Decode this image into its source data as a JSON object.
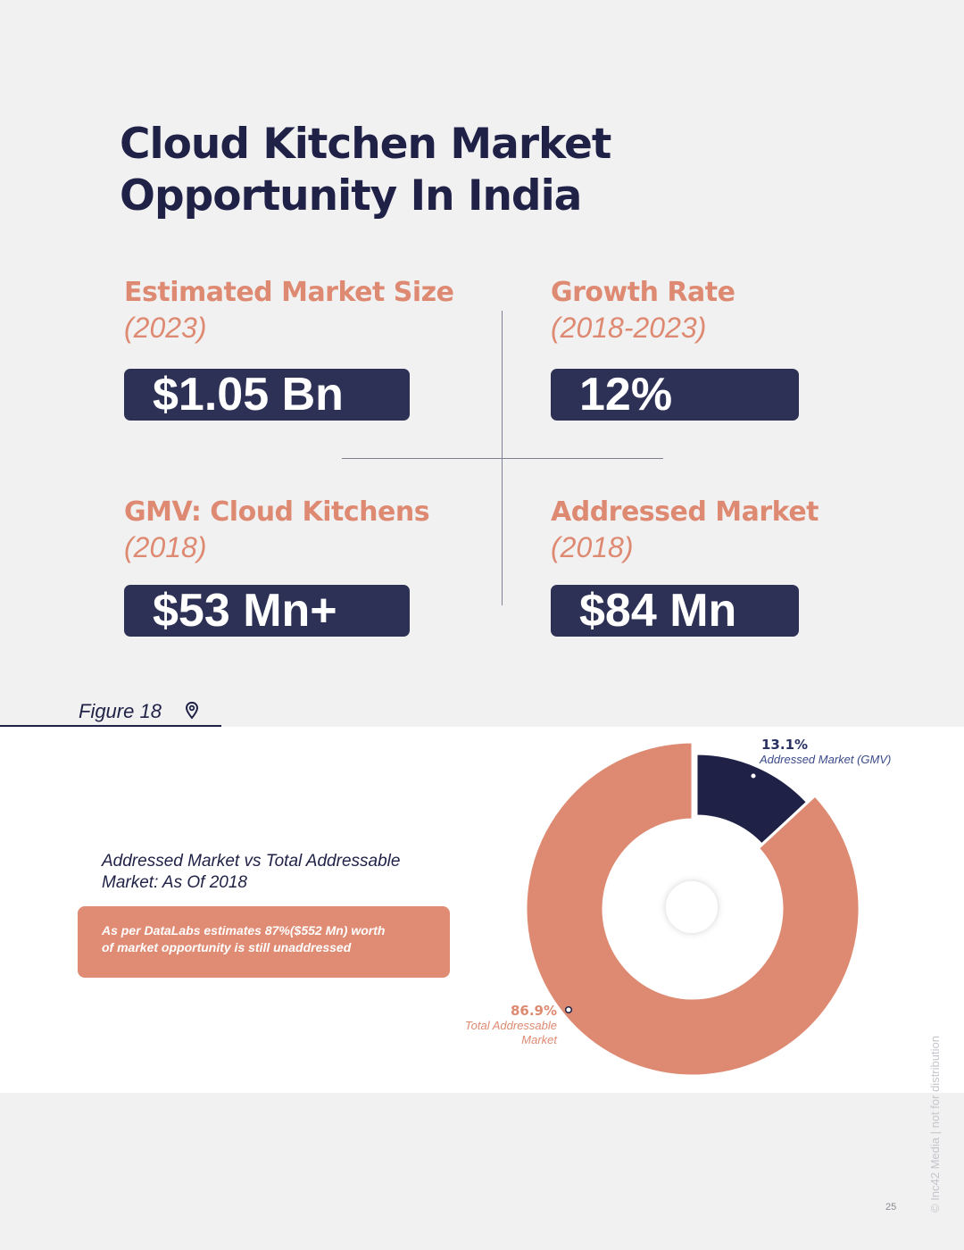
{
  "page": {
    "title_line1": "Cloud Kitchen Market",
    "title_line2": "Opportunity In India",
    "page_number": "25",
    "copyright": "© Inc42 Media | not for distribution"
  },
  "stats": [
    {
      "title": "Estimated Market Size",
      "subtitle": "(2023)",
      "value": "$1.05 Bn"
    },
    {
      "title": "Growth Rate",
      "subtitle": "(2018-2023)",
      "value": "12%"
    },
    {
      "title": "GMV: Cloud Kitchens",
      "subtitle": "(2018)",
      "value": "$53 Mn+"
    },
    {
      "title": "Addressed Market",
      "subtitle": "(2018)",
      "value": "$84 Mn"
    }
  ],
  "figure": {
    "label": "Figure 18",
    "heading_line1": "Addressed Market vs Total Addressable",
    "heading_line2": "Market: As Of 2018",
    "note_line1": "As per DataLabs estimates 87%($552 Mn) worth",
    "note_line2": "of market opportunity is still unaddressed"
  },
  "colors": {
    "navy": "#1f2146",
    "coral": "#de8a72",
    "box": "#2e3156"
  },
  "chart_data": {
    "type": "pie",
    "variant": "donut",
    "slices": [
      {
        "label_line1": "Addressed Market (GMV)",
        "label_line2": "",
        "value": 13.1,
        "display": "13.1%",
        "color": "#1f2146"
      },
      {
        "label_line1": "Total Addressable",
        "label_line2": "Market",
        "value": 86.9,
        "display": "86.9%",
        "color": "#de8a72"
      }
    ]
  }
}
